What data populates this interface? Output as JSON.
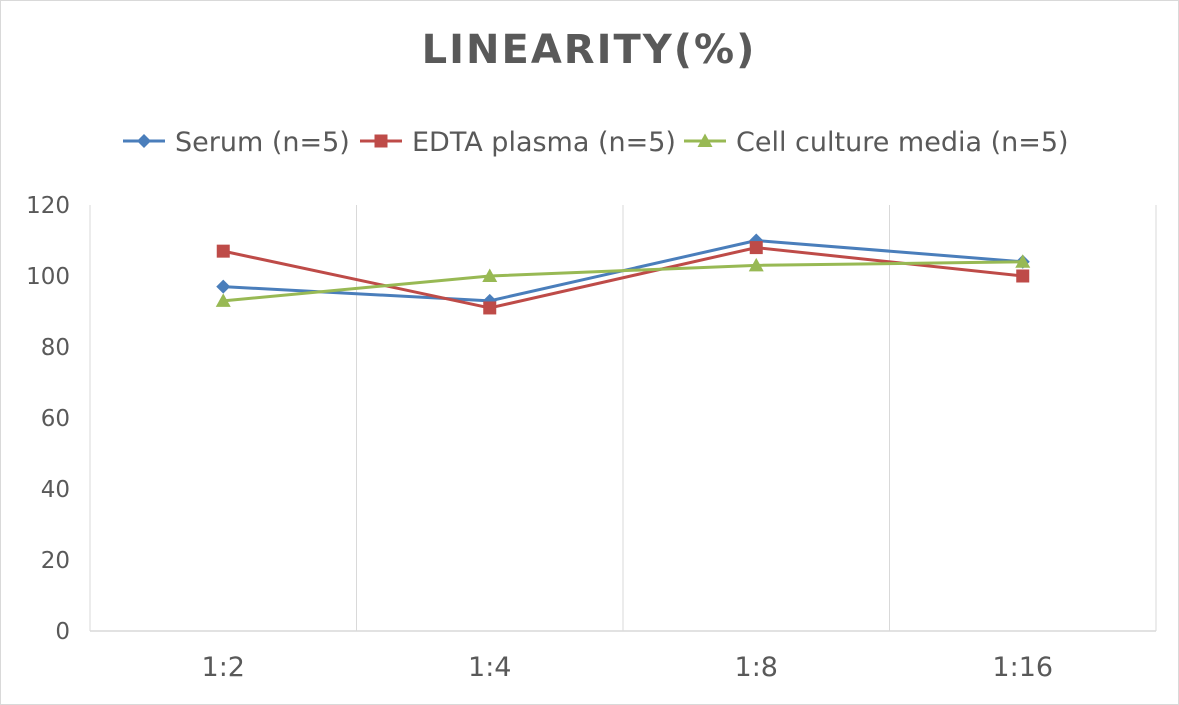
{
  "chart_data": {
    "type": "line",
    "title": "LINEARITY(%)",
    "categories": [
      "1:2",
      "1:4",
      "1:8",
      "1:16"
    ],
    "series": [
      {
        "name": "Serum (n=5)",
        "values": [
          97,
          93,
          110,
          104
        ],
        "color": "#4a7ebb",
        "marker": "diamond"
      },
      {
        "name": "EDTA plasma (n=5)",
        "values": [
          107,
          91,
          108,
          100
        ],
        "color": "#be4b48",
        "marker": "square"
      },
      {
        "name": "Cell culture media (n=5)",
        "values": [
          93,
          100,
          103,
          104
        ],
        "color": "#98b954",
        "marker": "triangle"
      }
    ],
    "ylim": [
      0,
      120
    ],
    "yticks": [
      "0",
      "20",
      "40",
      "60",
      "80",
      "100",
      "120"
    ],
    "xlabel": "",
    "ylabel": "",
    "legend_position": "top",
    "grid": "vertical"
  }
}
